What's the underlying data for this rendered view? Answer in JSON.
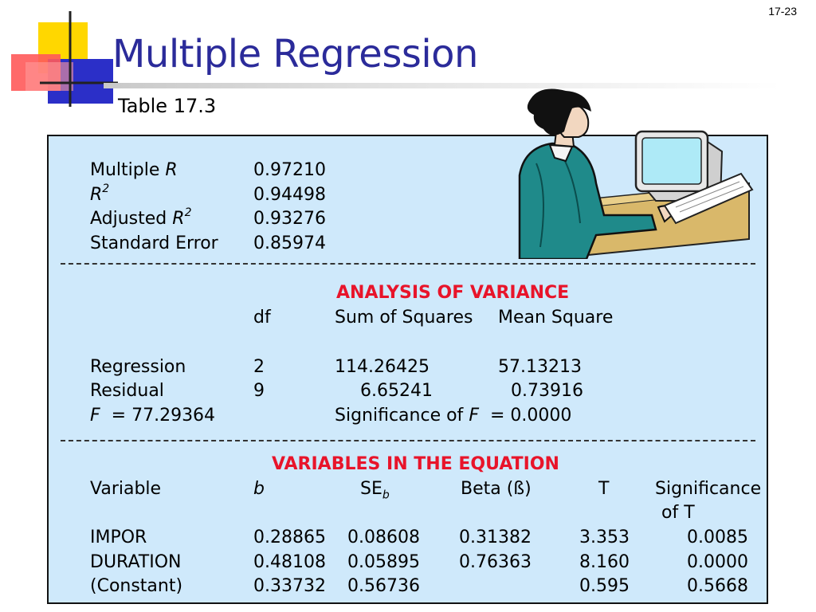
{
  "page_number": "17-23",
  "title": "Multiple Regression",
  "subtitle": "Table 17.3",
  "summary": {
    "multiple_r_label": "Multiple",
    "multiple_r_sym": "R",
    "multiple_r_value": "0.97210",
    "r2_sym": "R",
    "r2_sup": "2",
    "r2_value": "0.94498",
    "adj_label": "Adjusted",
    "adj_sym": "R",
    "adj_sup": "2",
    "adj_value": "0.93276",
    "se_label": "Standard Error",
    "se_value": "0.85974"
  },
  "anova": {
    "heading": "ANALYSIS OF VARIANCE",
    "col_df": "df",
    "col_ss": "Sum of Squares",
    "col_ms": "Mean Square",
    "rows": [
      {
        "label": "Regression",
        "df": "2",
        "ss": "114.26425",
        "ms": "57.13213"
      },
      {
        "label": "Residual",
        "df": "9",
        "ss": "6.65241",
        "ms": "0.73916"
      }
    ],
    "f_sym": "F",
    "f_text": "= 77.29364",
    "sig_label": "Significance of",
    "sig_sym": "F",
    "sig_text": "= 0.0000"
  },
  "variables": {
    "heading": "VARIABLES IN THE EQUATION",
    "col_variable": "Variable",
    "col_b": "b",
    "col_se": "SE",
    "col_se_sub": "b",
    "col_beta": "Beta (ß)",
    "col_t": "T",
    "col_sig_1": "Significance",
    "col_sig_2": "of T",
    "rows": [
      {
        "variable": "IMPOR",
        "b": "0.28865",
        "se": "0.08608",
        "beta": "0.31382",
        "t": "3.353",
        "sig": "0.0085"
      },
      {
        "variable": "DURATION",
        "b": "0.48108",
        "se": "0.05895",
        "beta": "0.76363",
        "t": "8.160",
        "sig": "0.0000"
      },
      {
        "variable": "(Constant)",
        "b": "0.33732",
        "se": "0.56736",
        "beta": "",
        "t": "0.595",
        "sig": "0.5668"
      }
    ]
  },
  "colors": {
    "title": "#2b2b9a",
    "panel_bg": "#cfe9fb",
    "heading_red": "#e8142a"
  }
}
